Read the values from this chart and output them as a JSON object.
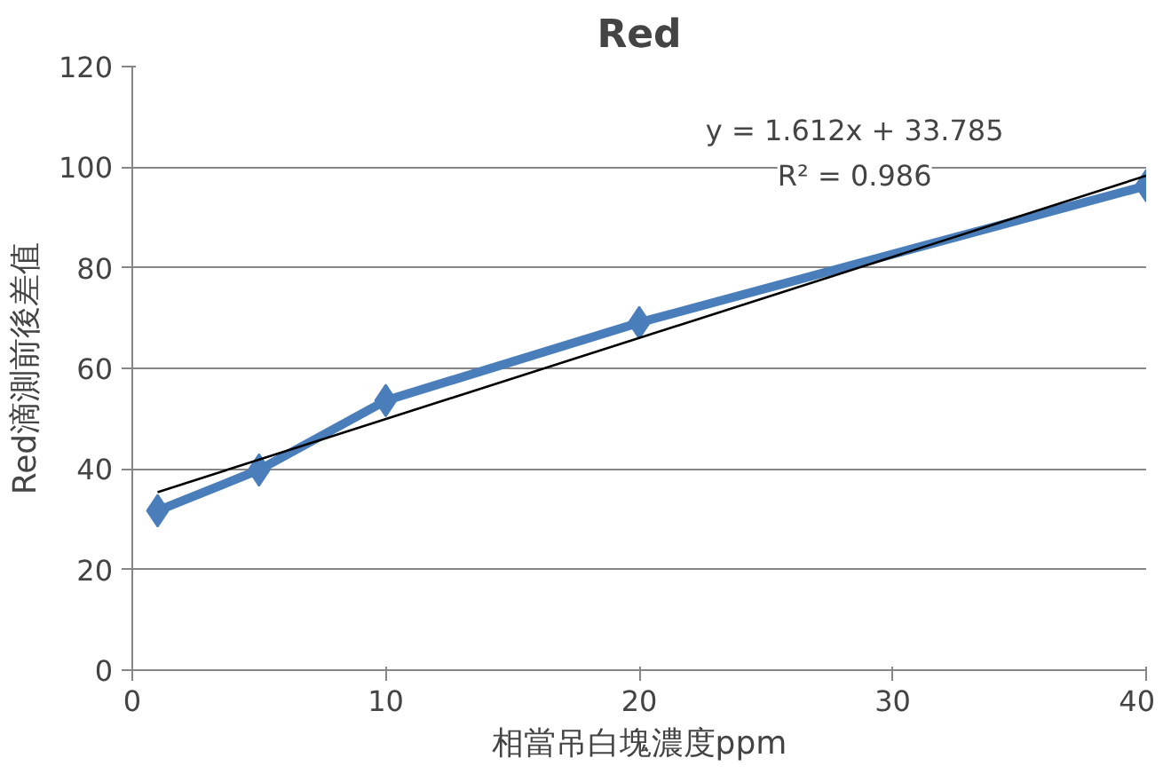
{
  "chart_data": {
    "type": "line",
    "title": "Red",
    "xlabel": "相當吊白塊濃度ppm",
    "ylabel": "Red滴測前後差值",
    "series": [
      {
        "color": "#4a7ebb",
        "x": [
          1,
          5,
          10,
          20,
          40
        ],
        "values": [
          31.7,
          39.8,
          53.6,
          69.1,
          96.3
        ],
        "marker": "diamond"
      },
      {
        "color": "#000000",
        "x": [
          1,
          40
        ],
        "values": [
          35.4,
          98.3
        ],
        "marker": "none"
      }
    ],
    "annotations": [
      "y = 1.612x + 33.785",
      "R² = 0.986"
    ],
    "xlim": [
      0,
      40
    ],
    "xticks": [
      0,
      10,
      20,
      30,
      40
    ],
    "ylim": [
      0,
      120
    ],
    "yticks": [
      0,
      20,
      40,
      60,
      80,
      100,
      120
    ],
    "grid": "y"
  }
}
